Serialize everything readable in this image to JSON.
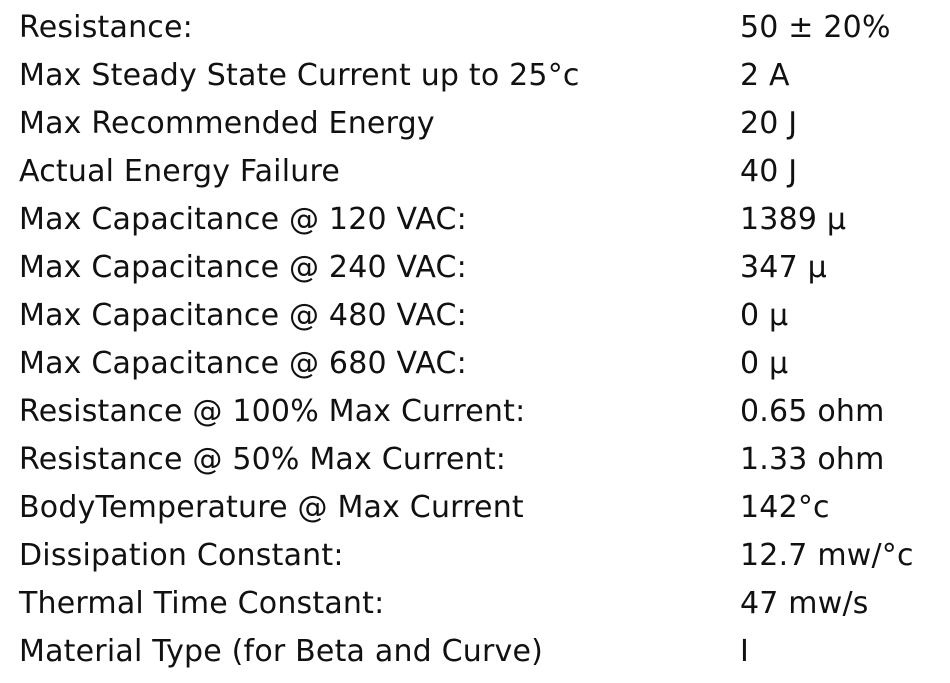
{
  "specs": [
    {
      "label": "Resistance:",
      "value": "50 ± 20%"
    },
    {
      "label": "Max Steady State Current up to 25°c",
      "value": "2 A"
    },
    {
      "label": "Max Recommended Energy",
      "value": "20 J"
    },
    {
      "label": "Actual Energy Failure",
      "value": "40 J"
    },
    {
      "label": "Max Capacitance @ 120 VAC:",
      "value": "1389 μ"
    },
    {
      "label": "Max Capacitance @ 240 VAC:",
      "value": "347 μ"
    },
    {
      "label": "Max Capacitance @ 480 VAC:",
      "value": "0 μ"
    },
    {
      "label": "Max Capacitance @ 680 VAC:",
      "value": "0 μ"
    },
    {
      "label": "Resistance @ 100% Max Current:",
      "value": "0.65 ohm"
    },
    {
      "label": "Resistance @ 50% Max Current:",
      "value": "1.33 ohm"
    },
    {
      "label": "BodyTemperature @ Max Current",
      "value": "142°c"
    },
    {
      "label": "Dissipation Constant:",
      "value": "12.7 mw/°c"
    },
    {
      "label": "Thermal Time Constant:",
      "value": "47 mw/s"
    },
    {
      "label": "Material Type (for Beta and Curve)",
      "value": "I"
    }
  ]
}
